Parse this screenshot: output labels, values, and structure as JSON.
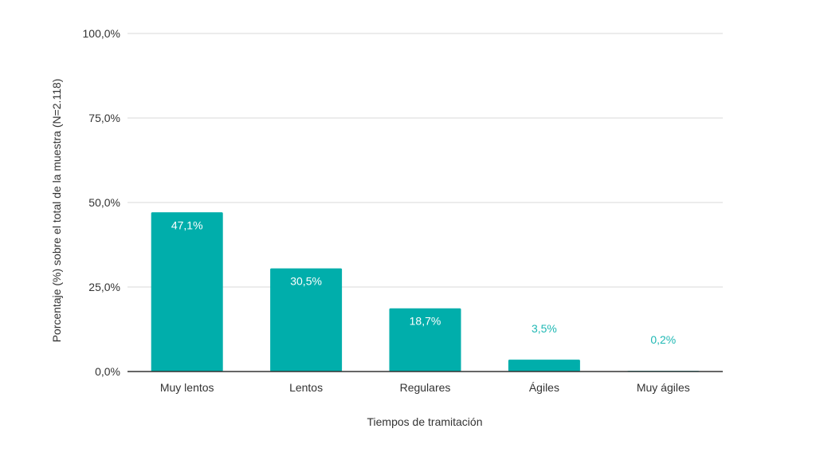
{
  "chart_data": {
    "type": "bar",
    "title": "",
    "xlabel": "Tiempos de tramitación",
    "ylabel": "Porcentaje (%) sobre el total de la muestra (N=2.118)",
    "categories": [
      "Muy lentos",
      "Lentos",
      "Regulares",
      "Ágiles",
      "Muy ágiles"
    ],
    "values": [
      47.1,
      30.5,
      18.7,
      3.5,
      0.2
    ],
    "data_labels": [
      "47,1%",
      "30,5%",
      "18,7%",
      "3,5%",
      "0,2%"
    ],
    "ylim": [
      0,
      100
    ],
    "yticks": [
      0,
      25,
      50,
      75,
      100
    ],
    "ytick_labels": [
      "0,0%",
      "25,0%",
      "50,0%",
      "75,0%",
      "100,0%"
    ],
    "grid": true,
    "legend": "none",
    "colors": {
      "bar": "#00aeab",
      "label_inside": "#ffffff",
      "label_outside": "#1fb8b4",
      "grid": "#d9d9d9",
      "axis": "#333333",
      "text": "#333333"
    }
  }
}
